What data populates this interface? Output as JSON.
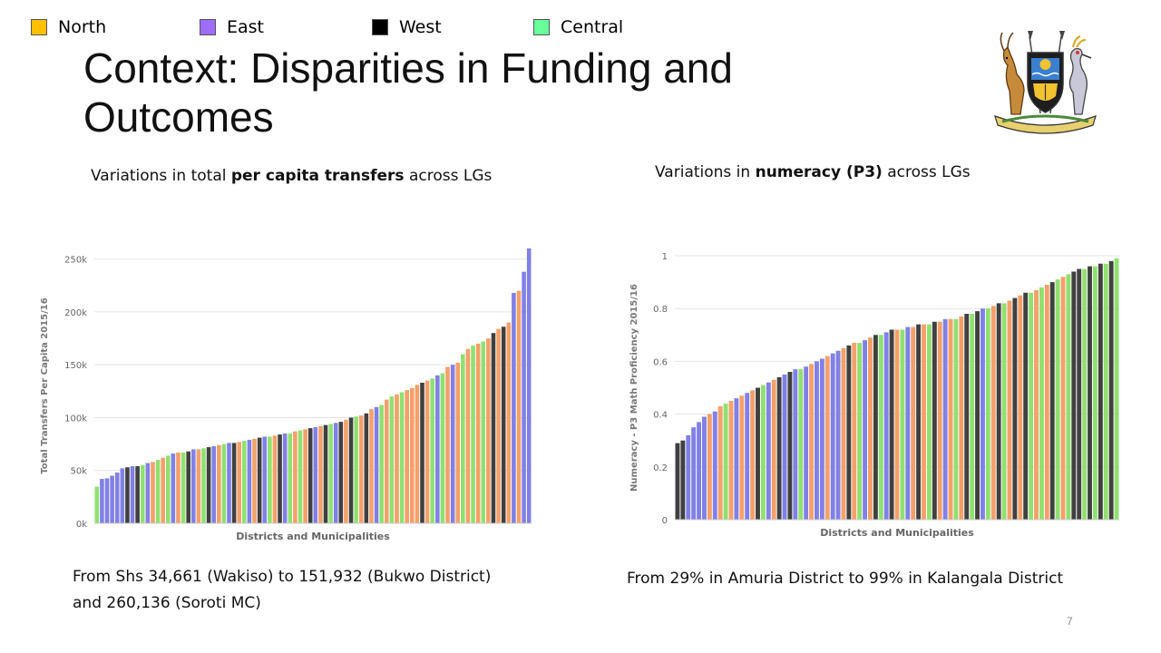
{
  "legend": [
    {
      "label": "North",
      "color": "#ffc000"
    },
    {
      "label": "East",
      "color": "#9e6eff"
    },
    {
      "label": "West",
      "color": "#000000"
    },
    {
      "label": "Central",
      "color": "#66ff99"
    }
  ],
  "title": "Context: Disparities in Funding and Outcomes",
  "left_panel": {
    "subtitle_pre": "Variations in total ",
    "subtitle_bold": "per capita transfers",
    "subtitle_post": " across LGs",
    "caption": "From Shs 34,661 (Wakiso) to 151,932 (Bukwo District) and 260,136 (Soroti MC)"
  },
  "right_panel": {
    "subtitle_pre": "Variations in ",
    "subtitle_bold": "numeracy (P3)",
    "subtitle_post": " across LGs",
    "caption": "From 29% in Amuria District to 99% in Kalangala District"
  },
  "page_number": "7",
  "bar_colors": {
    "North": "#f4a06a",
    "East": "#8080e6",
    "West": "#404040",
    "Central": "#90e070"
  },
  "chart_data": [
    {
      "type": "bar",
      "title": "",
      "xlabel": "Districts and Municipalities",
      "ylabel": "Total Transfers Per Capita 2015/16",
      "ylim": [
        0,
        260000
      ],
      "yticks": [
        0,
        50000,
        100000,
        150000,
        200000,
        250000
      ],
      "ytick_labels": [
        "0k",
        "50k",
        "100k",
        "150k",
        "200k",
        "250k"
      ],
      "grid": true,
      "series": [
        {
          "region": "Central",
          "values": [
            34661
          ]
        },
        {
          "region": "East",
          "values": [
            42000,
            42500,
            45000,
            48000,
            52000,
            54000,
            57000,
            66000,
            70000,
            73000,
            76000,
            79000,
            82000,
            85000,
            91000,
            95000,
            110000,
            140000,
            150000,
            218000,
            238000,
            260136
          ]
        },
        {
          "region": "West",
          "values": [
            53000,
            54000,
            68000,
            72000,
            76000,
            81000,
            84000,
            90000,
            93000,
            96000,
            100000,
            104000,
            133000,
            180000,
            186000
          ]
        },
        {
          "region": "North",
          "values": [
            58000,
            62000,
            67000,
            70000,
            74000,
            77000,
            80000,
            83000,
            87000,
            89000,
            92000,
            98000,
            102000,
            108000,
            117000,
            122000,
            126000,
            128000,
            131000,
            135000,
            148000,
            151932,
            165000,
            170000,
            175000,
            184000,
            190000,
            220000
          ]
        },
        {
          "region": "Central",
          "values": [
            55000,
            60000,
            64000,
            67000,
            71000,
            75000,
            78000,
            82000,
            85000,
            88000,
            94000,
            101000,
            112000,
            120000,
            124000,
            137000,
            142000,
            160000,
            168000,
            172000
          ]
        }
      ]
    },
    {
      "type": "bar",
      "title": "",
      "xlabel": "Districts and Municipalities",
      "ylabel": "Numeracy - P3 Math Proficiency 2015/16",
      "ylim": [
        0,
        1
      ],
      "yticks": [
        0,
        0.2,
        0.4,
        0.6,
        0.8,
        1
      ],
      "ytick_labels": [
        "0",
        "0.2",
        "0.4",
        "0.6",
        "0.8",
        "1"
      ],
      "grid": true,
      "series": [
        {
          "region": "West",
          "values": [
            0.29,
            0.3,
            0.5,
            0.54,
            0.56,
            0.66,
            0.7,
            0.72,
            0.74,
            0.75,
            0.78,
            0.79,
            0.82,
            0.84,
            0.86,
            0.9,
            0.94,
            0.95,
            0.96,
            0.97,
            0.98
          ]
        },
        {
          "region": "East",
          "values": [
            0.32,
            0.35,
            0.37,
            0.39,
            0.41,
            0.46,
            0.48,
            0.52,
            0.55,
            0.57,
            0.58,
            0.6,
            0.61,
            0.63,
            0.64,
            0.68,
            0.71,
            0.73,
            0.76,
            0.8
          ]
        },
        {
          "region": "North",
          "values": [
            0.4,
            0.43,
            0.45,
            0.47,
            0.49,
            0.53,
            0.59,
            0.62,
            0.65,
            0.67,
            0.69,
            0.72,
            0.73,
            0.74,
            0.75,
            0.76,
            0.77,
            0.81,
            0.83,
            0.85,
            0.87,
            0.89,
            0.92
          ]
        },
        {
          "region": "Central",
          "values": [
            0.44,
            0.51,
            0.57,
            0.67,
            0.7,
            0.72,
            0.74,
            0.76,
            0.78,
            0.8,
            0.82,
            0.86,
            0.88,
            0.91,
            0.93,
            0.95,
            0.96,
            0.97,
            0.99
          ]
        }
      ]
    }
  ]
}
